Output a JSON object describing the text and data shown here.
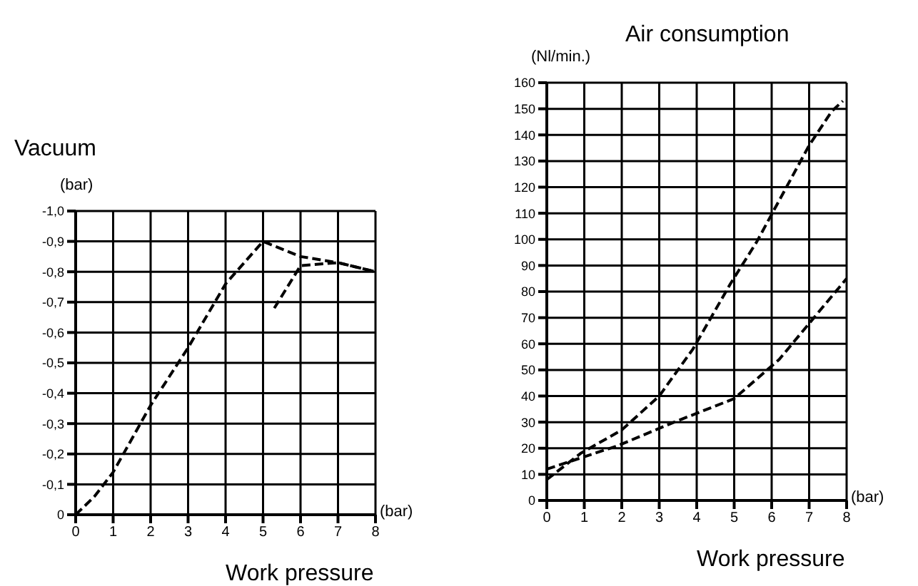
{
  "chart_data": [
    {
      "type": "line",
      "title": "Vacuum",
      "xlabel": "(bar)",
      "ylabel": "(bar)",
      "annotations": [
        "Work pressure"
      ],
      "xlim": [
        0,
        8
      ],
      "xticks": [
        0,
        1,
        2,
        3,
        4,
        5,
        6,
        7,
        8
      ],
      "ylim": [
        0,
        -1.0
      ],
      "yticks": [
        {
          "value": 0,
          "label": "0"
        },
        {
          "value": -0.1,
          "label": "-0,1"
        },
        {
          "value": -0.2,
          "label": "-0,2"
        },
        {
          "value": -0.3,
          "label": "-0,3"
        },
        {
          "value": -0.4,
          "label": "-0,4"
        },
        {
          "value": -0.5,
          "label": "-0,5"
        },
        {
          "value": -0.6,
          "label": "-0,6"
        },
        {
          "value": -0.7,
          "label": "-0,7"
        },
        {
          "value": -0.8,
          "label": "-0,8"
        },
        {
          "value": -0.9,
          "label": "-0,9"
        },
        {
          "value": -1.0,
          "label": "-1,0"
        }
      ],
      "grid": true,
      "line_style": "dashed",
      "marker": "none",
      "series": [
        {
          "color": "#000000",
          "x": [
            0,
            0.5,
            1,
            2,
            3,
            4,
            5,
            6,
            7,
            8
          ],
          "values": [
            0,
            -0.06,
            -0.14,
            -0.36,
            -0.55,
            -0.76,
            -0.9,
            -0.85,
            -0.83,
            -0.8
          ]
        },
        {
          "color": "#000000",
          "x": [
            5.3,
            6,
            7,
            8
          ],
          "values": [
            -0.68,
            -0.82,
            -0.83,
            -0.8
          ]
        }
      ]
    },
    {
      "type": "line",
      "title": "Air consumption",
      "xlabel": "(bar)",
      "ylabel": "(Nl/min.)",
      "annotations": [
        "Work pressure"
      ],
      "xlim": [
        0,
        8
      ],
      "xticks": [
        0,
        1,
        2,
        3,
        4,
        5,
        6,
        7,
        8
      ],
      "ylim": [
        0,
        160
      ],
      "yticks": [
        0,
        10,
        20,
        30,
        40,
        50,
        60,
        70,
        80,
        90,
        100,
        110,
        120,
        130,
        140,
        150,
        160
      ],
      "grid": true,
      "line_style": "dashed",
      "marker": "none",
      "series": [
        {
          "color": "#000000",
          "x": [
            0,
            0.9,
            2,
            3,
            3.9,
            4.9,
            5.6,
            7,
            7.6,
            7.9
          ],
          "values": [
            8,
            18,
            27,
            40,
            58,
            83,
            99,
            136,
            149,
            153
          ]
        },
        {
          "color": "#000000",
          "x": [
            0,
            1.9,
            3.4,
            5,
            6.2,
            8
          ],
          "values": [
            12,
            21,
            30,
            39,
            54,
            85
          ]
        }
      ]
    }
  ]
}
